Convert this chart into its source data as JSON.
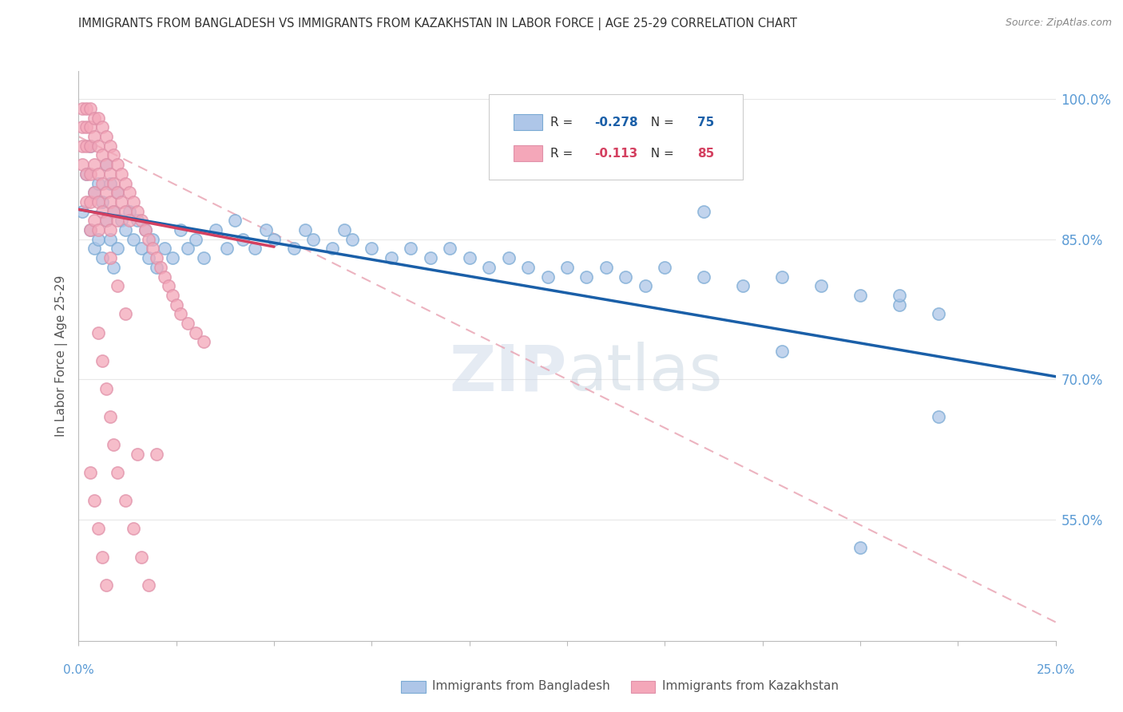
{
  "title": "IMMIGRANTS FROM BANGLADESH VS IMMIGRANTS FROM KAZAKHSTAN IN LABOR FORCE | AGE 25-29 CORRELATION CHART",
  "source": "Source: ZipAtlas.com",
  "ylabel": "In Labor Force | Age 25-29",
  "legend": [
    {
      "label": "Immigrants from Bangladesh",
      "color": "#aec6e8",
      "R": -0.278,
      "N": 75
    },
    {
      "label": "Immigrants from Kazakhstan",
      "color": "#f4a7b9",
      "R": -0.113,
      "N": 85
    }
  ],
  "xlim": [
    0.0,
    0.25
  ],
  "ylim": [
    0.42,
    1.03
  ],
  "yticks": [
    1.0,
    0.85,
    0.7,
    0.55
  ],
  "background_color": "#ffffff",
  "grid_color": "#e8e8e8",
  "bangladesh_x": [
    0.001,
    0.002,
    0.003,
    0.003,
    0.004,
    0.004,
    0.005,
    0.005,
    0.006,
    0.006,
    0.007,
    0.007,
    0.008,
    0.008,
    0.009,
    0.009,
    0.01,
    0.01,
    0.011,
    0.012,
    0.013,
    0.014,
    0.015,
    0.016,
    0.017,
    0.018,
    0.019,
    0.02,
    0.022,
    0.024,
    0.026,
    0.028,
    0.03,
    0.032,
    0.035,
    0.038,
    0.04,
    0.042,
    0.045,
    0.048,
    0.05,
    0.055,
    0.058,
    0.06,
    0.065,
    0.068,
    0.07,
    0.075,
    0.08,
    0.085,
    0.09,
    0.095,
    0.1,
    0.105,
    0.11,
    0.115,
    0.12,
    0.125,
    0.13,
    0.135,
    0.14,
    0.145,
    0.15,
    0.16,
    0.17,
    0.18,
    0.19,
    0.2,
    0.21,
    0.22,
    0.16,
    0.18,
    0.2,
    0.21,
    0.22
  ],
  "bangladesh_y": [
    0.88,
    0.92,
    0.95,
    0.86,
    0.9,
    0.84,
    0.91,
    0.85,
    0.89,
    0.83,
    0.93,
    0.87,
    0.91,
    0.85,
    0.88,
    0.82,
    0.9,
    0.84,
    0.87,
    0.86,
    0.88,
    0.85,
    0.87,
    0.84,
    0.86,
    0.83,
    0.85,
    0.82,
    0.84,
    0.83,
    0.86,
    0.84,
    0.85,
    0.83,
    0.86,
    0.84,
    0.87,
    0.85,
    0.84,
    0.86,
    0.85,
    0.84,
    0.86,
    0.85,
    0.84,
    0.86,
    0.85,
    0.84,
    0.83,
    0.84,
    0.83,
    0.84,
    0.83,
    0.82,
    0.83,
    0.82,
    0.81,
    0.82,
    0.81,
    0.82,
    0.81,
    0.8,
    0.82,
    0.81,
    0.8,
    0.81,
    0.8,
    0.79,
    0.78,
    0.77,
    0.88,
    0.73,
    0.52,
    0.79,
    0.66
  ],
  "kazakhstan_x": [
    0.001,
    0.001,
    0.001,
    0.001,
    0.002,
    0.002,
    0.002,
    0.002,
    0.002,
    0.003,
    0.003,
    0.003,
    0.003,
    0.003,
    0.003,
    0.004,
    0.004,
    0.004,
    0.004,
    0.004,
    0.005,
    0.005,
    0.005,
    0.005,
    0.005,
    0.006,
    0.006,
    0.006,
    0.006,
    0.007,
    0.007,
    0.007,
    0.007,
    0.008,
    0.008,
    0.008,
    0.008,
    0.009,
    0.009,
    0.009,
    0.01,
    0.01,
    0.01,
    0.011,
    0.011,
    0.012,
    0.012,
    0.013,
    0.013,
    0.014,
    0.015,
    0.016,
    0.017,
    0.018,
    0.019,
    0.02,
    0.021,
    0.022,
    0.023,
    0.024,
    0.025,
    0.026,
    0.028,
    0.03,
    0.032,
    0.005,
    0.006,
    0.007,
    0.008,
    0.009,
    0.01,
    0.012,
    0.014,
    0.016,
    0.018,
    0.02,
    0.008,
    0.01,
    0.012,
    0.015,
    0.003,
    0.004,
    0.005,
    0.006,
    0.007
  ],
  "kazakhstan_y": [
    0.99,
    0.97,
    0.95,
    0.93,
    0.99,
    0.97,
    0.95,
    0.92,
    0.89,
    0.99,
    0.97,
    0.95,
    0.92,
    0.89,
    0.86,
    0.98,
    0.96,
    0.93,
    0.9,
    0.87,
    0.98,
    0.95,
    0.92,
    0.89,
    0.86,
    0.97,
    0.94,
    0.91,
    0.88,
    0.96,
    0.93,
    0.9,
    0.87,
    0.95,
    0.92,
    0.89,
    0.86,
    0.94,
    0.91,
    0.88,
    0.93,
    0.9,
    0.87,
    0.92,
    0.89,
    0.91,
    0.88,
    0.9,
    0.87,
    0.89,
    0.88,
    0.87,
    0.86,
    0.85,
    0.84,
    0.83,
    0.82,
    0.81,
    0.8,
    0.79,
    0.78,
    0.77,
    0.76,
    0.75,
    0.74,
    0.75,
    0.72,
    0.69,
    0.66,
    0.63,
    0.6,
    0.57,
    0.54,
    0.51,
    0.48,
    0.62,
    0.83,
    0.8,
    0.77,
    0.62,
    0.6,
    0.57,
    0.54,
    0.51,
    0.48
  ],
  "blue_line_x": [
    0.0,
    0.25
  ],
  "blue_line_y": [
    0.882,
    0.703
  ],
  "pink_line_x": [
    0.0,
    0.05
  ],
  "pink_line_y": [
    0.882,
    0.842
  ],
  "dashed_line_x": [
    0.0,
    0.25
  ],
  "dashed_line_y": [
    0.96,
    0.44
  ],
  "blue_line_color": "#1a5fa8",
  "pink_line_color": "#d44060",
  "dashed_line_color": "#e8a0b0",
  "blue_dot_color": "#aec6e8",
  "pink_dot_color": "#f4a7b9",
  "blue_dot_edge": "#7aaad4",
  "pink_dot_edge": "#e090a8"
}
